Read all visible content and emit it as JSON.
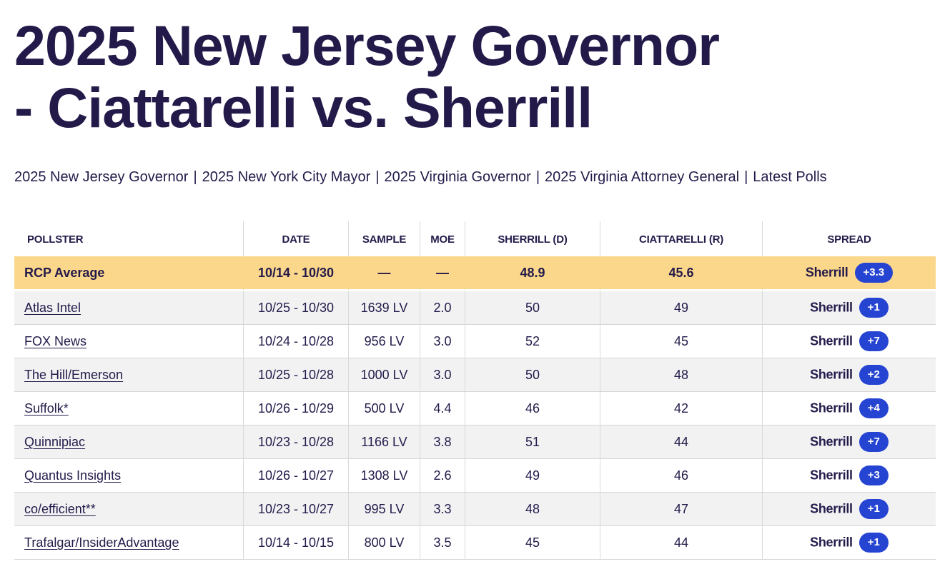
{
  "colors": {
    "navy": "#241a4a",
    "highlight": "#fbd78b",
    "badge_blue": "#2644d2",
    "row_alt": "#f2f2f3",
    "divider": "#d9d9d9"
  },
  "header": {
    "title": "2025 New Jersey Governor - Ciattarelli vs. Sherrill",
    "title_line1": "2025 New Jersey Governor",
    "title_line2": "- Ciattarelli vs. Sherrill"
  },
  "nav": {
    "separator": "|",
    "links": [
      "2025 New Jersey Governor",
      "2025 New York City Mayor",
      "2025 Virginia Governor",
      "2025 Virginia Attorney General",
      "Latest Polls"
    ]
  },
  "table": {
    "columns": [
      "POLLSTER",
      "DATE",
      "SAMPLE",
      "MOE",
      "SHERRILL (D)",
      "CIATTARELLI (R)",
      "SPREAD"
    ],
    "average_row": {
      "pollster": "RCP Average",
      "date": "10/14 - 10/30",
      "sample": "—",
      "moe": "—",
      "sherrill": "48.9",
      "ciattarelli": "45.6",
      "spread_leader": "Sherrill",
      "spread_margin": "+3.3"
    },
    "rows": [
      {
        "pollster": "Atlas Intel",
        "date": "10/25 - 10/30",
        "sample": "1639 LV",
        "moe": "2.0",
        "sherrill": "50",
        "ciattarelli": "49",
        "spread_leader": "Sherrill",
        "spread_margin": "+1"
      },
      {
        "pollster": "FOX News",
        "date": "10/24 - 10/28",
        "sample": "956 LV",
        "moe": "3.0",
        "sherrill": "52",
        "ciattarelli": "45",
        "spread_leader": "Sherrill",
        "spread_margin": "+7"
      },
      {
        "pollster": "The Hill/Emerson",
        "date": "10/25 - 10/28",
        "sample": "1000 LV",
        "moe": "3.0",
        "sherrill": "50",
        "ciattarelli": "48",
        "spread_leader": "Sherrill",
        "spread_margin": "+2"
      },
      {
        "pollster": "Suffolk*",
        "date": "10/26 - 10/29",
        "sample": "500 LV",
        "moe": "4.4",
        "sherrill": "46",
        "ciattarelli": "42",
        "spread_leader": "Sherrill",
        "spread_margin": "+4"
      },
      {
        "pollster": "Quinnipiac",
        "date": "10/23 - 10/28",
        "sample": "1166 LV",
        "moe": "3.8",
        "sherrill": "51",
        "ciattarelli": "44",
        "spread_leader": "Sherrill",
        "spread_margin": "+7"
      },
      {
        "pollster": "Quantus Insights",
        "date": "10/26 - 10/27",
        "sample": "1308 LV",
        "moe": "2.6",
        "sherrill": "49",
        "ciattarelli": "46",
        "spread_leader": "Sherrill",
        "spread_margin": "+3"
      },
      {
        "pollster": "co/efficient**",
        "date": "10/23 - 10/27",
        "sample": "995 LV",
        "moe": "3.3",
        "sherrill": "48",
        "ciattarelli": "47",
        "spread_leader": "Sherrill",
        "spread_margin": "+1"
      },
      {
        "pollster": "Trafalgar/InsiderAdvantage",
        "date": "10/14 - 10/15",
        "sample": "800 LV",
        "moe": "3.5",
        "sherrill": "45",
        "ciattarelli": "44",
        "spread_leader": "Sherrill",
        "spread_margin": "+1"
      }
    ]
  }
}
